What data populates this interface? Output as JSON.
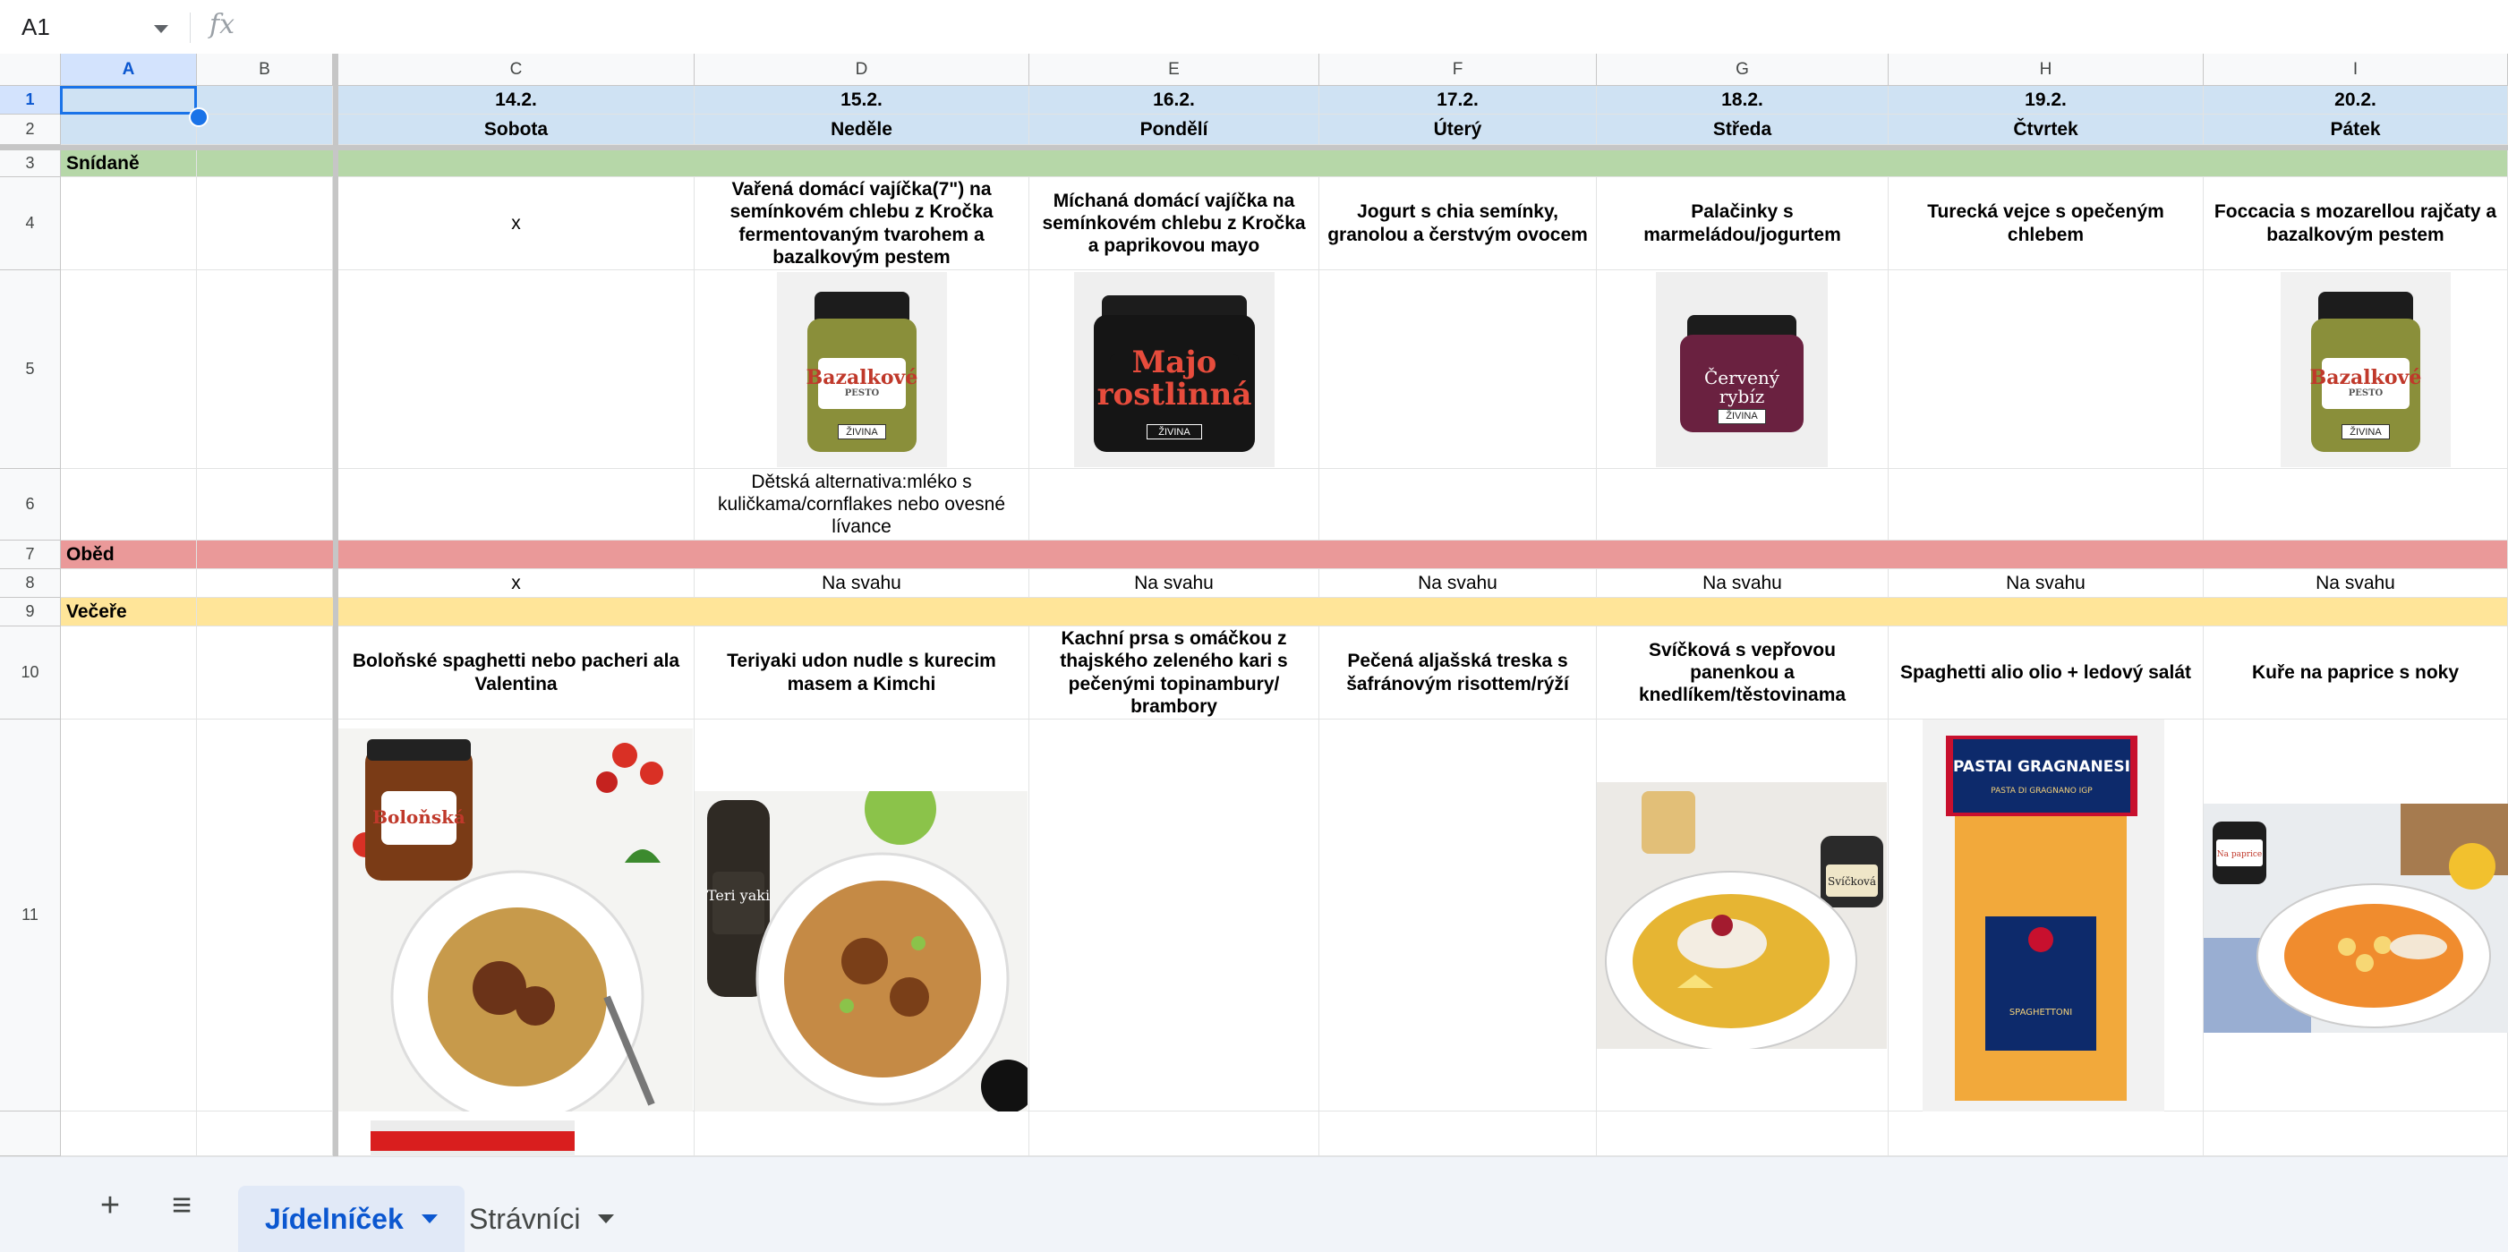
{
  "formula_bar": {
    "name_box": "A1",
    "fx": "fx",
    "formula": ""
  },
  "columns": [
    "A",
    "B",
    "C",
    "D",
    "E",
    "F",
    "G",
    "H",
    "I"
  ],
  "rows": [
    "1",
    "2",
    "3",
    "4",
    "5",
    "6",
    "7",
    "8",
    "9",
    "10",
    "11",
    ""
  ],
  "dates": [
    "14.2.",
    "15.2.",
    "16.2.",
    "17.2.",
    "18.2.",
    "19.2.",
    "20.2."
  ],
  "days": [
    "Sobota",
    "Neděle",
    "Pondělí",
    "Úterý",
    "Středa",
    "Čtvrtek",
    "Pátek"
  ],
  "sections": {
    "breakfast": "Snídaně",
    "lunch": "Oběd",
    "dinner": "Večeře"
  },
  "breakfast": [
    "x",
    "Vařená domácí vajíčka(7\") na semínkovém chlebu z Kročka fermentovaným tvarohem a bazalkovým pestem",
    "Míchaná domácí vajíčka na semínkovém chlebu z Kročka a paprikovou mayo",
    "Jogurt s chia semínky, granolou a čerstvým ovocem",
    "Palačinky s marmeládou/jogurtem",
    "Turecká vejce s opečeným chlebem",
    "Foccacia s mozarellou rajčaty a bazalkovým pestem"
  ],
  "kids_alternative": "Dětská alternativa:mléko s kuličkama/cornflakes nebo ovesné lívance",
  "lunch": [
    "x",
    "Na svahu",
    "Na svahu",
    "Na svahu",
    "Na svahu",
    "Na svahu",
    "Na svahu"
  ],
  "dinner": [
    "Boloňské spaghetti nebo pacheri ala Valentina",
    "Teriyaki udon nudle s kurecim masem a Kimchi",
    "Kachní prsa s omáčkou z thajského zeleného kari s pečenými topinambury/ brambory",
    "Pečená aljašská treska s šafránovým risottem/rýží",
    "Svíčková s vepřovou panenkou a knedlíkem/těstovinama",
    "Spaghetti alio olio + ledový salát",
    "Kuře na paprice s noky"
  ],
  "product_labels": {
    "pesto": "Bazalkové",
    "pesto_sub": "PESTO",
    "mayo": "Majo rostlinná",
    "jam": "Červený rybíz",
    "brand": "ŽIVINA",
    "bolognese": "Boloňská",
    "teriyaki": "Teri yaki",
    "svickova": "Svíčková",
    "pasta_brand": "PASTAI GRAGNANESI",
    "pasta_sub": "PASTA DI GRAGNANO IGP",
    "pasta_type": "SPAGHETTONI",
    "paprika": "Na paprice"
  },
  "sheets": {
    "add": "+",
    "menu": "≡",
    "tabs": [
      "Jídelníček",
      "Strávníci"
    ],
    "active": 0
  },
  "colors": {
    "header_blue": "#cfe2f3",
    "breakfast_green": "#b6d7a8",
    "lunch_red": "#ea9999",
    "dinner_yellow": "#ffe599",
    "selection": "#1a73e8"
  }
}
